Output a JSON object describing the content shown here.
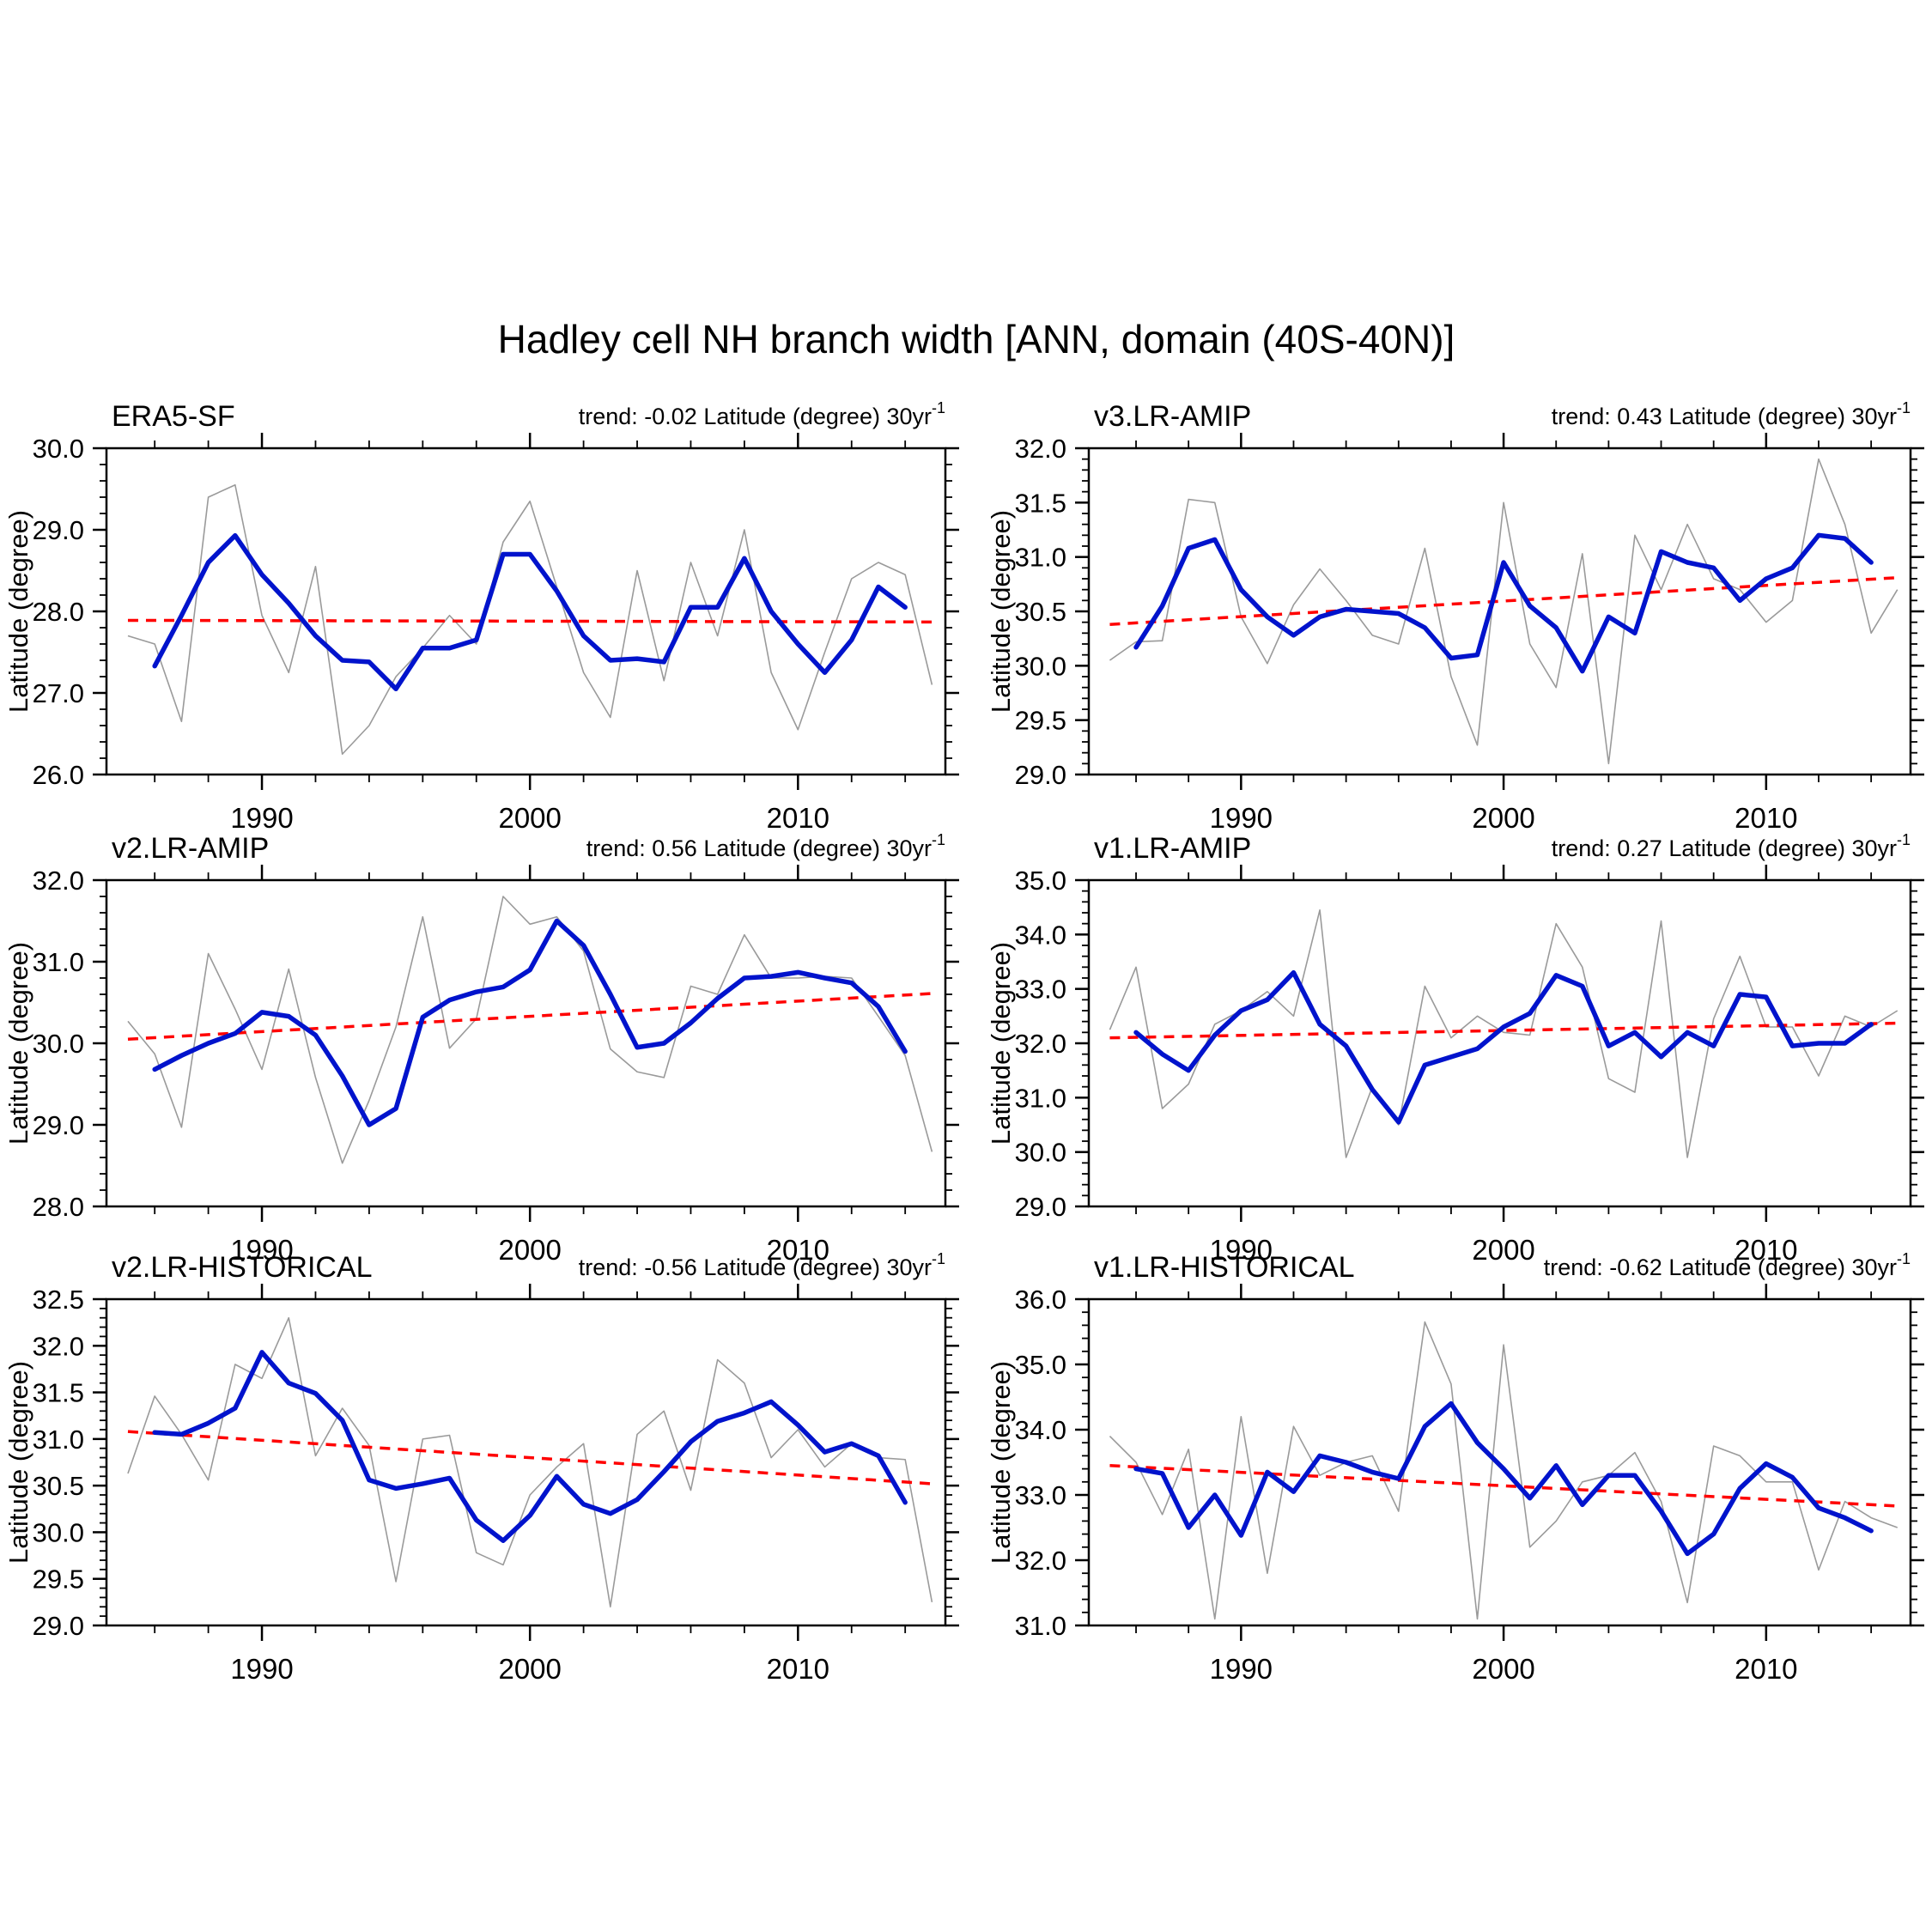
{
  "title": "Hadley cell NH branch width [ANN, domain (40S-40N)]",
  "y_axis_title": "Latitude (degree)",
  "colors": {
    "raw_series": "#9a9a9a",
    "smooth_series": "#0013cc",
    "trend_line": "#ff0000",
    "axis": "#000000",
    "background": "#ffffff"
  },
  "x_axis": {
    "labeled_ticks": [
      1990,
      2000,
      2010
    ],
    "minor_step_years": 2,
    "range": [
      1984.2,
      2015.5
    ]
  },
  "chart_data": [
    {
      "type": "line",
      "name": "ERA5-SF",
      "trend_text": "trend: -0.02 Latitude (degree) 30yr",
      "trend_sup": "-1",
      "trend_per_30yr": -0.02,
      "ylabel": "Latitude (degree)",
      "ylim": [
        26.0,
        30.0
      ],
      "ytick_step": 1.0,
      "raw_start_year": 1985,
      "raw": [
        27.7,
        27.6,
        26.65,
        29.4,
        29.55,
        27.95,
        27.25,
        28.55,
        26.25,
        26.6,
        27.2,
        27.55,
        27.95,
        27.6,
        28.85,
        29.35,
        28.3,
        27.25,
        26.7,
        28.5,
        27.15,
        28.6,
        27.7,
        29.0,
        27.25,
        26.55,
        27.5,
        28.4,
        28.6,
        28.45,
        27.1
      ],
      "smooth_start_year": 1986,
      "smooth": [
        27.33,
        27.95,
        28.6,
        28.93,
        28.45,
        28.1,
        27.7,
        27.4,
        27.38,
        27.05,
        27.55,
        27.55,
        27.65,
        28.7,
        28.7,
        28.25,
        27.7,
        27.4,
        27.42,
        27.38,
        28.05,
        28.05,
        28.65,
        28.0,
        27.6,
        27.25,
        27.65,
        28.3,
        28.05
      ],
      "trend_start_value": 27.89,
      "trend_end_value": 27.87
    },
    {
      "type": "line",
      "name": "v3.LR-AMIP",
      "trend_text": "trend: 0.43 Latitude (degree) 30yr",
      "trend_sup": "-1",
      "trend_per_30yr": 0.43,
      "ylabel": "Latitude (degree)",
      "ylim": [
        29.0,
        32.0
      ],
      "ytick_step": 0.5,
      "raw_start_year": 1985,
      "raw": [
        30.05,
        30.22,
        30.23,
        31.53,
        31.5,
        30.45,
        30.02,
        30.56,
        30.89,
        30.6,
        30.28,
        30.2,
        31.08,
        29.9,
        29.27,
        31.5,
        30.2,
        29.8,
        31.03,
        29.1,
        31.2,
        30.7,
        31.3,
        30.8,
        30.7,
        30.4,
        30.6,
        31.9,
        31.3,
        30.3,
        30.7
      ],
      "smooth_start_year": 1986,
      "smooth": [
        30.17,
        30.55,
        31.08,
        31.16,
        30.7,
        30.45,
        30.28,
        30.45,
        30.52,
        30.5,
        30.48,
        30.35,
        30.07,
        30.1,
        30.95,
        30.55,
        30.35,
        29.95,
        30.45,
        30.3,
        31.05,
        30.95,
        30.9,
        30.6,
        30.8,
        30.9,
        31.2,
        31.17,
        30.95
      ],
      "trend_start_value": 30.38,
      "trend_end_value": 30.81
    },
    {
      "type": "line",
      "name": "v2.LR-AMIP",
      "trend_text": "trend: 0.56 Latitude (degree) 30yr",
      "trend_sup": "-1",
      "trend_per_30yr": 0.56,
      "ylabel": "Latitude (degree)",
      "ylim": [
        28.0,
        32.0
      ],
      "ytick_step": 1.0,
      "raw_start_year": 1985,
      "raw": [
        30.27,
        29.87,
        28.97,
        31.1,
        30.42,
        29.68,
        30.91,
        29.58,
        28.53,
        29.3,
        30.2,
        31.55,
        29.94,
        30.3,
        31.8,
        31.46,
        31.55,
        31.13,
        29.93,
        29.65,
        29.58,
        30.7,
        30.6,
        31.33,
        30.8,
        30.8,
        30.82,
        30.8,
        30.33,
        29.85,
        28.67
      ],
      "smooth_start_year": 1986,
      "smooth": [
        29.68,
        29.85,
        30.0,
        30.12,
        30.38,
        30.33,
        30.1,
        29.6,
        29.0,
        29.2,
        30.32,
        30.53,
        30.63,
        30.69,
        30.9,
        31.5,
        31.2,
        30.6,
        29.95,
        30.0,
        30.25,
        30.55,
        30.8,
        30.82,
        30.87,
        30.8,
        30.74,
        30.45,
        29.9
      ],
      "trend_start_value": 30.05,
      "trend_end_value": 30.61
    },
    {
      "type": "line",
      "name": "v1.LR-AMIP",
      "trend_text": "trend: 0.27 Latitude (degree) 30yr",
      "trend_sup": "-1",
      "trend_per_30yr": 0.27,
      "ylabel": "Latitude (degree)",
      "ylim": [
        29.0,
        35.0
      ],
      "ytick_step": 1.0,
      "raw_start_year": 1985,
      "raw": [
        32.25,
        33.4,
        30.8,
        31.25,
        32.35,
        32.6,
        32.95,
        32.5,
        34.45,
        29.9,
        31.2,
        30.5,
        33.05,
        32.1,
        32.5,
        32.2,
        32.15,
        34.2,
        33.4,
        31.35,
        31.1,
        34.25,
        29.9,
        32.45,
        33.6,
        32.3,
        32.3,
        31.4,
        32.5,
        32.3,
        32.6
      ],
      "smooth_start_year": 1986,
      "smooth": [
        32.2,
        31.8,
        31.5,
        32.15,
        32.6,
        32.8,
        33.3,
        32.35,
        31.95,
        31.15,
        30.55,
        31.6,
        31.75,
        31.9,
        32.3,
        32.55,
        33.25,
        33.05,
        31.95,
        32.2,
        31.75,
        32.2,
        31.95,
        32.9,
        32.85,
        31.95,
        32.0,
        32.0,
        32.35
      ],
      "trend_start_value": 32.1,
      "trend_end_value": 32.37
    },
    {
      "type": "line",
      "name": "v2.LR-HISTORICAL",
      "trend_text": "trend: -0.56 Latitude (degree) 30yr",
      "trend_sup": "-1",
      "trend_per_30yr": -0.56,
      "ylabel": "Latitude (degree)",
      "ylim": [
        29.0,
        32.5
      ],
      "ytick_step": 0.5,
      "raw_start_year": 1985,
      "raw": [
        30.63,
        31.46,
        31.05,
        30.56,
        31.8,
        31.65,
        32.3,
        30.82,
        31.33,
        30.93,
        29.47,
        31.0,
        31.04,
        29.78,
        29.65,
        30.4,
        30.7,
        30.95,
        29.2,
        31.05,
        31.3,
        30.45,
        31.85,
        31.6,
        30.8,
        31.1,
        30.7,
        30.95,
        30.8,
        30.78,
        29.25
      ],
      "smooth_start_year": 1986,
      "smooth": [
        31.07,
        31.05,
        31.17,
        31.33,
        31.93,
        31.6,
        31.49,
        31.2,
        30.56,
        30.47,
        30.52,
        30.58,
        30.13,
        29.91,
        30.18,
        30.6,
        30.3,
        30.2,
        30.35,
        30.65,
        30.97,
        31.19,
        31.28,
        31.4,
        31.15,
        30.86,
        30.95,
        30.82,
        30.32
      ],
      "trend_start_value": 31.08,
      "trend_end_value": 30.52
    },
    {
      "type": "line",
      "name": "v1.LR-HISTORICAL",
      "trend_text": "trend: -0.62 Latitude (degree) 30yr",
      "trend_sup": "-1",
      "trend_per_30yr": -0.62,
      "ylabel": "Latitude (degree)",
      "ylim": [
        31.0,
        36.0
      ],
      "ytick_step": 1.0,
      "raw_start_year": 1985,
      "raw": [
        33.9,
        33.5,
        32.7,
        33.7,
        31.1,
        34.2,
        31.8,
        34.05,
        33.3,
        33.5,
        33.6,
        32.75,
        35.65,
        34.7,
        31.1,
        35.3,
        32.2,
        32.6,
        33.2,
        33.3,
        33.65,
        32.9,
        31.35,
        33.75,
        33.6,
        33.2,
        33.2,
        31.85,
        32.9,
        32.65,
        32.5
      ],
      "smooth_start_year": 1986,
      "smooth": [
        33.4,
        33.33,
        32.5,
        33.0,
        32.38,
        33.35,
        33.05,
        33.6,
        33.5,
        33.35,
        33.25,
        34.05,
        34.4,
        33.8,
        33.4,
        32.95,
        33.45,
        32.85,
        33.3,
        33.3,
        32.75,
        32.1,
        32.4,
        33.1,
        33.48,
        33.27,
        32.8,
        32.65,
        32.45
      ],
      "trend_start_value": 33.45,
      "trend_end_value": 32.83
    }
  ]
}
